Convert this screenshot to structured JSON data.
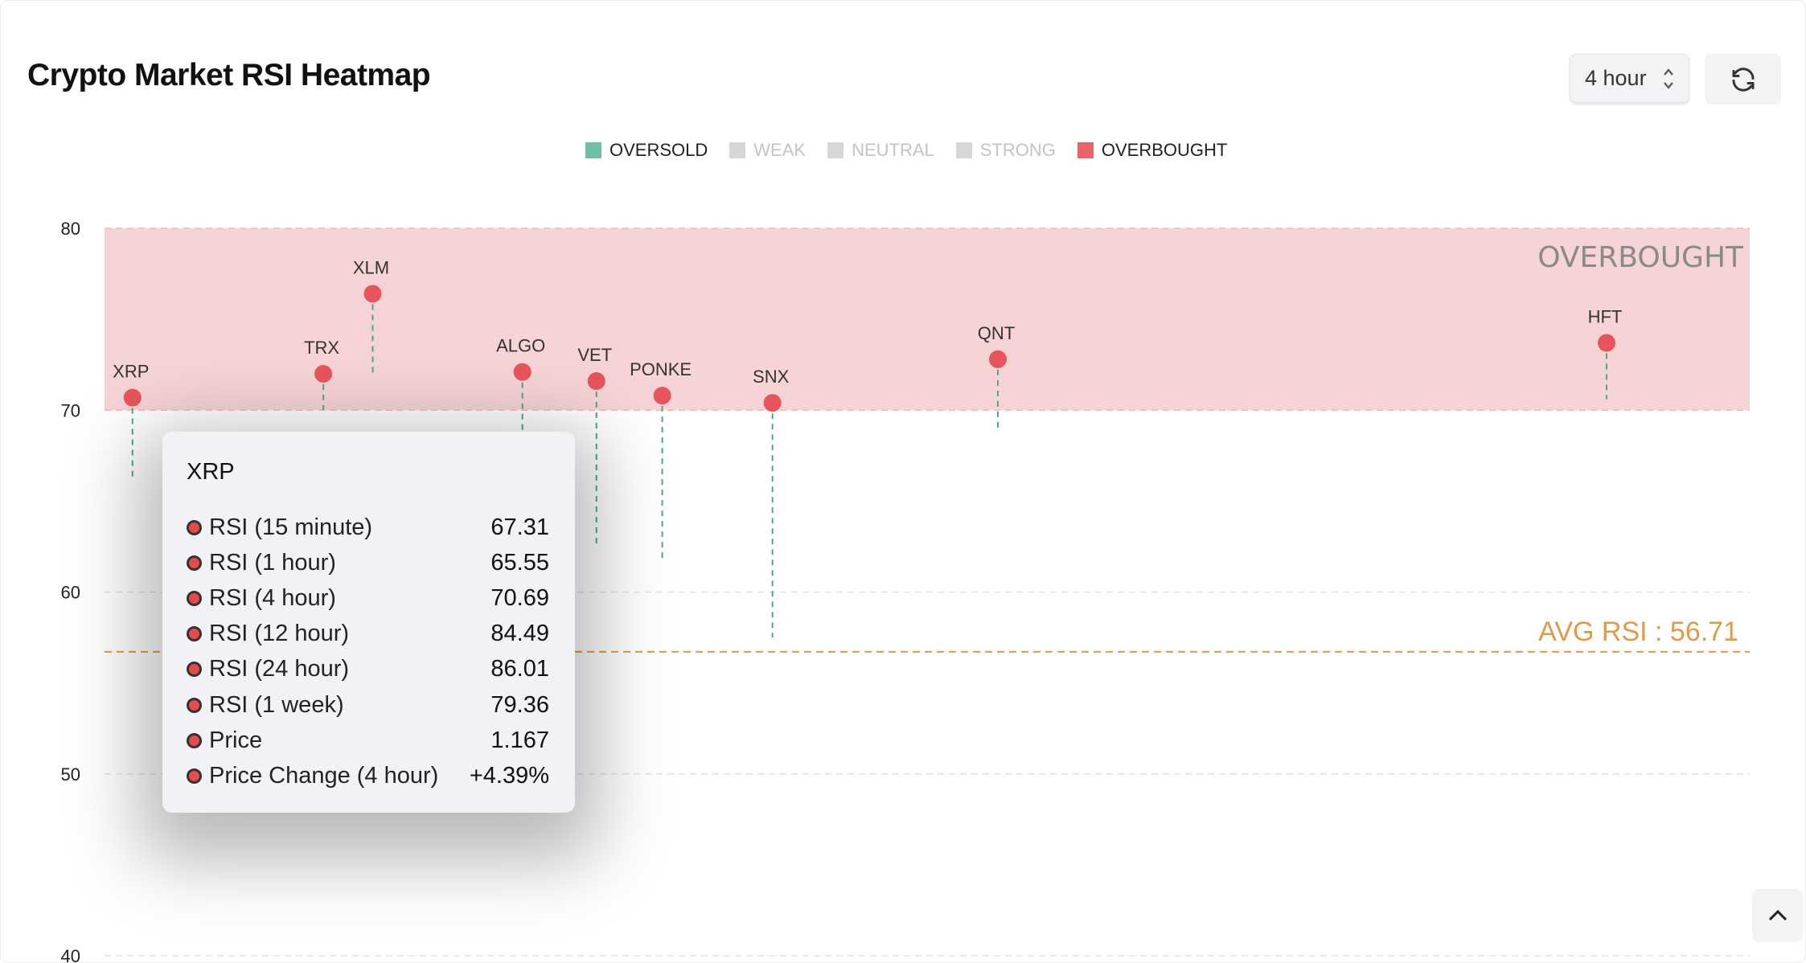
{
  "header": {
    "title": "Crypto Market RSI Heatmap",
    "timeframe_select": "4 hour",
    "refresh_icon": "refresh-icon"
  },
  "legend": [
    {
      "label": "OVERSOLD",
      "color": "#6dbfa6",
      "active": true
    },
    {
      "label": "WEAK",
      "color": "#d6d6d6",
      "active": false
    },
    {
      "label": "NEUTRAL",
      "color": "#d6d6d6",
      "active": false
    },
    {
      "label": "STRONG",
      "color": "#d6d6d6",
      "active": false
    },
    {
      "label": "OVERBOUGHT",
      "color": "#e8636a",
      "active": true
    }
  ],
  "chart_data": {
    "type": "scatter",
    "title": "Crypto Market RSI Heatmap",
    "ylim": [
      40,
      80
    ],
    "xlim": [
      0,
      100
    ],
    "yticks": [
      "80",
      "70",
      "60",
      "50",
      "40"
    ],
    "grid": true,
    "legend_position": "top",
    "zones": [
      {
        "label": "OVERBOUGHT",
        "from": 70,
        "to": 80,
        "color": "#f6d3d4"
      }
    ],
    "average": {
      "label": "AVG RSI : 56.71",
      "value": 56.71,
      "color": "#e09a4a"
    },
    "points": [
      {
        "name": "XRP",
        "x": 1.7,
        "y": 70.69,
        "stem_to": 66.3
      },
      {
        "name": "TRX",
        "x": 13.3,
        "y": 72.0,
        "stem_to": 70.0
      },
      {
        "name": "XLM",
        "x": 16.3,
        "y": 76.4,
        "stem_to": 71.8
      },
      {
        "name": "ALGO",
        "x": 25.4,
        "y": 72.1,
        "stem_to": 68.8
      },
      {
        "name": "VET",
        "x": 29.9,
        "y": 71.6,
        "stem_to": 62.5
      },
      {
        "name": "PONKE",
        "x": 33.9,
        "y": 70.8,
        "stem_to": 61.6
      },
      {
        "name": "SNX",
        "x": 40.6,
        "y": 70.4,
        "stem_to": 57.5
      },
      {
        "name": "QNT",
        "x": 54.3,
        "y": 72.8,
        "stem_to": 68.9
      },
      {
        "name": "HFT",
        "x": 91.3,
        "y": 73.7,
        "stem_to": 70.6
      }
    ],
    "point_color": "#e8545c",
    "stem_color": "#4aa88a"
  },
  "tooltip": {
    "title": "XRP",
    "rows": [
      {
        "label": "RSI (15 minute)",
        "value": "67.31"
      },
      {
        "label": "RSI (1 hour)",
        "value": "65.55"
      },
      {
        "label": "RSI (4 hour)",
        "value": "70.69"
      },
      {
        "label": "RSI (12 hour)",
        "value": "84.49"
      },
      {
        "label": "RSI (24 hour)",
        "value": "86.01"
      },
      {
        "label": "RSI (1 week)",
        "value": "79.36"
      },
      {
        "label": "Price",
        "value": "1.167"
      },
      {
        "label": "Price Change (4 hour)",
        "value": "+4.39%"
      }
    ]
  }
}
